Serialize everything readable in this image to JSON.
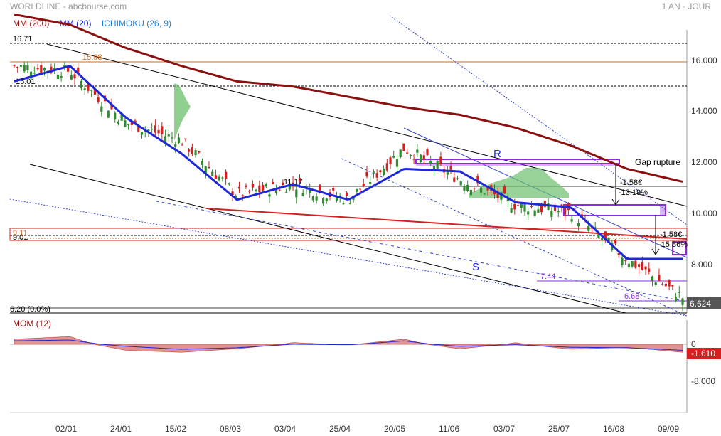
{
  "header": {
    "symbol": "WORLDLINE",
    "source": "abcbourse.com",
    "period": "1 AN · JOUR"
  },
  "legend": [
    {
      "label": "MM (200)",
      "color": "#8b1010"
    },
    {
      "label": "MM (20)",
      "color": "#1e28d8"
    },
    {
      "label": "ICHIMOKU (26, 9)",
      "color": "#1e7fd8"
    }
  ],
  "colors": {
    "candle_up": "#2e8b2e",
    "candle_down": "#d42020",
    "mm200": "#8b1010",
    "mm20": "#1e28d8",
    "trend": "#000000",
    "dotted": "#3344cc",
    "purple": "#8a2be2",
    "ichimoku_cloud": "#6cbf6c",
    "mom_area": "#d98080",
    "last_price_bg": "#555555"
  },
  "x_labels": [
    "02/01",
    "24/01",
    "15/02",
    "08/03",
    "03/04",
    "25/04",
    "20/05",
    "11/06",
    "03/07",
    "25/07",
    "16/08",
    "09/09"
  ],
  "price_axis": {
    "ylim": [
      6.0,
      17.0
    ],
    "ticks": [
      "16.000",
      "14.000",
      "12.000",
      "10.000",
      "8.000"
    ],
    "last_price": "6.624"
  },
  "levels": {
    "high": "16.71",
    "l1598": "15.98",
    "l1501": "15.01",
    "l911": "9.11",
    "l901": "9.01",
    "low": "6.20 (0.0%)",
    "l744": "7.44",
    "l668": "6.68"
  },
  "annotations": {
    "gap_rupture": "Gap rupture",
    "gap1_abs": "-1.58€",
    "gap1_pct": "-13.19%",
    "gap2_abs": "-1.58€",
    "gap2_pct": "-15.86%",
    "label_r": "R",
    "label_s": "S",
    "label_1117": "11.17"
  },
  "momentum": {
    "title": "MOM (12)",
    "ticks": [
      "0",
      "-8.000"
    ],
    "last_value": "-1.610"
  },
  "chart_data": {
    "type": "candlestick",
    "title": "",
    "xlabel": "",
    "ylabel": "",
    "ylim": [
      6.0,
      17.0
    ],
    "x": [
      "02/01",
      "24/01",
      "15/02",
      "08/03",
      "03/04",
      "25/04",
      "20/05",
      "11/06",
      "03/07",
      "25/07",
      "16/08",
      "09/09"
    ],
    "series": [
      {
        "name": "Cours",
        "values": [
          15.4,
          13.4,
          12.7,
          10.6,
          11.0,
          10.4,
          12.4,
          11.2,
          10.2,
          9.9,
          8.1,
          6.6
        ]
      },
      {
        "name": "MM (20)",
        "values": [
          15.5,
          13.6,
          12.2,
          10.4,
          11.0,
          10.4,
          11.6,
          11.5,
          10.3,
          10.1,
          8.1,
          8.1
        ]
      },
      {
        "name": "MM (200)",
        "values": [
          17.2,
          16.3,
          15.6,
          15.0,
          14.8,
          14.4,
          14.0,
          13.7,
          13.2,
          12.5,
          11.6,
          11.1
        ]
      },
      {
        "name": "MOM (12)",
        "values": [
          0.9,
          -1.2,
          -1.6,
          -0.9,
          0.2,
          -0.1,
          0.6,
          -0.9,
          0.2,
          -1.0,
          -0.6,
          -1.6
        ]
      }
    ],
    "momentum_ylim": [
      -8,
      1.5
    ],
    "grid": false,
    "legend_position": "top-left"
  }
}
